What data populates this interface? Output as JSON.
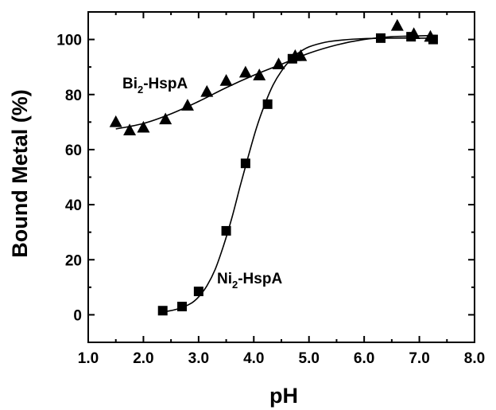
{
  "chart_data": {
    "type": "scatter",
    "xlabel": "pH",
    "ylabel": "Bound Metal  (%)",
    "xlim": [
      1.0,
      8.0
    ],
    "ylim": [
      -10,
      110
    ],
    "x_ticks": [
      "1.0",
      "2.0",
      "3.0",
      "4.0",
      "5.0",
      "6.0",
      "7.0",
      "8.0"
    ],
    "y_ticks": [
      "0",
      "20",
      "40",
      "60",
      "80",
      "100"
    ],
    "x_tick_values": [
      1,
      2,
      3,
      4,
      5,
      6,
      7,
      8
    ],
    "y_tick_values": [
      0,
      20,
      40,
      60,
      80,
      100
    ],
    "grid": false,
    "legend": "none",
    "series": [
      {
        "label_main": "Bi",
        "label_sub": "2",
        "label_rest": "-HspA",
        "marker": "triangle",
        "x": [
          1.5,
          1.75,
          2.0,
          2.4,
          2.8,
          3.15,
          3.5,
          3.85,
          4.1,
          4.45,
          4.75,
          4.85,
          6.6,
          6.9,
          7.2
        ],
        "y": [
          70,
          67,
          68,
          71,
          76,
          81,
          85,
          88,
          87,
          91,
          94,
          94,
          105,
          102,
          101
        ],
        "fit": {
          "x": [
            1.5,
            2.0,
            2.5,
            3.0,
            3.5,
            4.0,
            4.5,
            5.0,
            5.5,
            6.0,
            6.5,
            7.0,
            7.3
          ],
          "y": [
            67.5,
            69.5,
            73,
            77.5,
            82.5,
            87,
            91,
            95,
            98,
            100,
            101,
            101.3,
            101.5
          ]
        }
      },
      {
        "label_main": "Ni",
        "label_sub": "2",
        "label_rest": "-HspA",
        "marker": "square",
        "x": [
          2.35,
          2.7,
          3.0,
          3.5,
          3.85,
          4.25,
          4.7,
          6.3,
          6.85,
          7.25
        ],
        "y": [
          1.5,
          3,
          8.5,
          30.5,
          55,
          76.5,
          93,
          100.5,
          101,
          100
        ],
        "fit": {
          "x": [
            2.35,
            2.6,
            2.85,
            3.0,
            3.15,
            3.3,
            3.45,
            3.6,
            3.75,
            3.9,
            4.05,
            4.2,
            4.35,
            4.5,
            4.65,
            4.8,
            5.0,
            5.3,
            5.6,
            6.0,
            6.5,
            7.0,
            7.3
          ],
          "y": [
            1,
            2,
            4,
            6.5,
            10.5,
            16.5,
            25,
            35,
            46.5,
            57.5,
            68,
            76.5,
            83.5,
            88.5,
            92.3,
            95,
            97.3,
            99,
            99.8,
            100.3,
            100.5,
            100.5,
            100.5
          ]
        }
      }
    ]
  }
}
